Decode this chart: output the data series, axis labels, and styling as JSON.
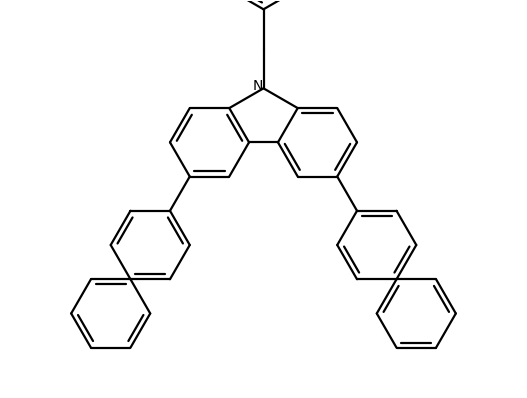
{
  "bg_color": "#ffffff",
  "bond_color": "#000000",
  "bond_width": 1.6,
  "figsize": [
    5.27,
    3.98
  ],
  "dpi": 100,
  "N_label": "N",
  "N_fontsize": 10
}
